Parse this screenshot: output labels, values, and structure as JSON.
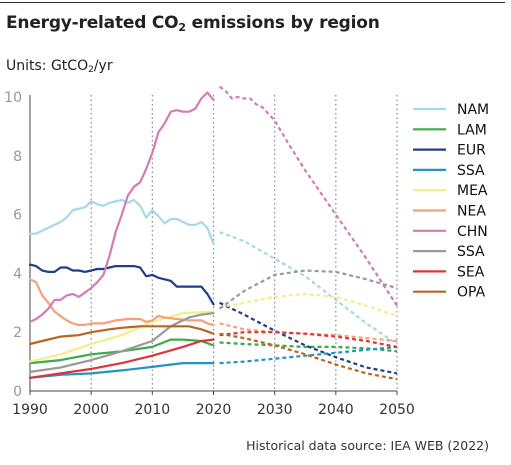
{
  "title": {
    "prefix": "Energy-related CO",
    "sub": "2",
    "suffix": " emissions by region"
  },
  "units": {
    "prefix": "Units: GtCO",
    "sub": "2",
    "suffix": "/yr"
  },
  "source": "Historical data source: IEA WEB (2022)",
  "chart_data": {
    "type": "line",
    "title": "Energy-related CO2 emissions by region",
    "ylabel": "Units: GtCO2/yr",
    "xlim": [
      1990,
      2050
    ],
    "ylim": [
      0,
      10
    ],
    "x_ticks": [
      1990,
      2000,
      2010,
      2020,
      2030,
      2040,
      2050
    ],
    "y_ticks": [
      0,
      2,
      4,
      6,
      8,
      10
    ],
    "grid": "vertical dotted",
    "legend_position": "right",
    "historical_end_year": 2020,
    "line_style": "solid = historical, dashed = projection",
    "series": [
      {
        "name": "NAM",
        "color": "#a6d8ec",
        "points": [
          [
            1990,
            5.35
          ],
          [
            1991,
            5.35
          ],
          [
            1992,
            5.45
          ],
          [
            1993,
            5.55
          ],
          [
            1994,
            5.65
          ],
          [
            1995,
            5.75
          ],
          [
            1996,
            5.9
          ],
          [
            1997,
            6.15
          ],
          [
            1998,
            6.2
          ],
          [
            1999,
            6.25
          ],
          [
            2000,
            6.45
          ],
          [
            2001,
            6.35
          ],
          [
            2002,
            6.3
          ],
          [
            2003,
            6.4
          ],
          [
            2004,
            6.45
          ],
          [
            2005,
            6.5
          ],
          [
            2006,
            6.4
          ],
          [
            2007,
            6.5
          ],
          [
            2008,
            6.3
          ],
          [
            2009,
            5.9
          ],
          [
            2010,
            6.15
          ],
          [
            2011,
            5.95
          ],
          [
            2012,
            5.7
          ],
          [
            2013,
            5.85
          ],
          [
            2014,
            5.85
          ],
          [
            2015,
            5.75
          ],
          [
            2016,
            5.65
          ],
          [
            2017,
            5.65
          ],
          [
            2018,
            5.75
          ],
          [
            2019,
            5.55
          ],
          [
            2020,
            5.0
          ],
          [
            2021,
            5.4
          ],
          [
            2025,
            5.1
          ],
          [
            2030,
            4.5
          ],
          [
            2035,
            3.9
          ],
          [
            2040,
            3.1
          ],
          [
            2045,
            2.3
          ],
          [
            2050,
            1.6
          ]
        ]
      },
      {
        "name": "LAM",
        "color": "#3aaa4a",
        "points": [
          [
            1990,
            0.95
          ],
          [
            1995,
            1.05
          ],
          [
            2000,
            1.25
          ],
          [
            2005,
            1.35
          ],
          [
            2010,
            1.5
          ],
          [
            2013,
            1.75
          ],
          [
            2015,
            1.75
          ],
          [
            2018,
            1.7
          ],
          [
            2020,
            1.55
          ],
          [
            2021,
            1.65
          ],
          [
            2025,
            1.6
          ],
          [
            2030,
            1.55
          ],
          [
            2035,
            1.5
          ],
          [
            2040,
            1.5
          ],
          [
            2045,
            1.45
          ],
          [
            2050,
            1.35
          ]
        ]
      },
      {
        "name": "EUR",
        "color": "#1f3f87",
        "points": [
          [
            1990,
            4.3
          ],
          [
            1991,
            4.25
          ],
          [
            1992,
            4.1
          ],
          [
            1993,
            4.05
          ],
          [
            1994,
            4.05
          ],
          [
            1995,
            4.2
          ],
          [
            1996,
            4.2
          ],
          [
            1997,
            4.1
          ],
          [
            1998,
            4.1
          ],
          [
            1999,
            4.05
          ],
          [
            2000,
            4.1
          ],
          [
            2001,
            4.15
          ],
          [
            2002,
            4.15
          ],
          [
            2003,
            4.2
          ],
          [
            2004,
            4.25
          ],
          [
            2005,
            4.25
          ],
          [
            2006,
            4.25
          ],
          [
            2007,
            4.25
          ],
          [
            2008,
            4.2
          ],
          [
            2009,
            3.9
          ],
          [
            2010,
            3.95
          ],
          [
            2011,
            3.85
          ],
          [
            2012,
            3.8
          ],
          [
            2013,
            3.75
          ],
          [
            2014,
            3.55
          ],
          [
            2015,
            3.55
          ],
          [
            2016,
            3.55
          ],
          [
            2017,
            3.55
          ],
          [
            2018,
            3.55
          ],
          [
            2019,
            3.3
          ],
          [
            2020,
            2.95
          ],
          [
            2021,
            3.0
          ],
          [
            2025,
            2.6
          ],
          [
            2030,
            2.05
          ],
          [
            2035,
            1.55
          ],
          [
            2040,
            1.15
          ],
          [
            2045,
            0.8
          ],
          [
            2050,
            0.6
          ]
        ]
      },
      {
        "name": "SSA",
        "color": "#2591c6",
        "points": [
          [
            1990,
            0.45
          ],
          [
            1995,
            0.55
          ],
          [
            2000,
            0.6
          ],
          [
            2005,
            0.7
          ],
          [
            2010,
            0.82
          ],
          [
            2015,
            0.95
          ],
          [
            2020,
            0.95
          ],
          [
            2021,
            0.95
          ],
          [
            2025,
            1.0
          ],
          [
            2030,
            1.1
          ],
          [
            2035,
            1.2
          ],
          [
            2040,
            1.3
          ],
          [
            2045,
            1.4
          ],
          [
            2050,
            1.5
          ]
        ]
      },
      {
        "name": "MEA",
        "color": "#f3ef86",
        "points": [
          [
            1990,
            1.0
          ],
          [
            1995,
            1.25
          ],
          [
            2000,
            1.6
          ],
          [
            2005,
            1.9
          ],
          [
            2010,
            2.35
          ],
          [
            2015,
            2.65
          ],
          [
            2020,
            2.7
          ],
          [
            2021,
            2.85
          ],
          [
            2025,
            3.0
          ],
          [
            2030,
            3.2
          ],
          [
            2035,
            3.3
          ],
          [
            2040,
            3.2
          ],
          [
            2045,
            2.9
          ],
          [
            2050,
            2.55
          ]
        ]
      },
      {
        "name": "NEA",
        "color": "#f4a07a",
        "points": [
          [
            1990,
            3.8
          ],
          [
            1991,
            3.7
          ],
          [
            1992,
            3.25
          ],
          [
            1993,
            3.0
          ],
          [
            1994,
            2.7
          ],
          [
            1995,
            2.55
          ],
          [
            1996,
            2.4
          ],
          [
            1997,
            2.3
          ],
          [
            1998,
            2.25
          ],
          [
            1999,
            2.25
          ],
          [
            2000,
            2.3
          ],
          [
            2002,
            2.3
          ],
          [
            2004,
            2.4
          ],
          [
            2006,
            2.45
          ],
          [
            2008,
            2.45
          ],
          [
            2009,
            2.35
          ],
          [
            2010,
            2.4
          ],
          [
            2011,
            2.55
          ],
          [
            2012,
            2.5
          ],
          [
            2014,
            2.45
          ],
          [
            2016,
            2.4
          ],
          [
            2018,
            2.4
          ],
          [
            2019,
            2.3
          ],
          [
            2020,
            2.25
          ],
          [
            2021,
            2.3
          ],
          [
            2025,
            2.1
          ],
          [
            2030,
            2.0
          ],
          [
            2035,
            1.95
          ],
          [
            2040,
            1.9
          ],
          [
            2045,
            1.8
          ],
          [
            2050,
            1.7
          ]
        ]
      },
      {
        "name": "CHN",
        "color": "#d57bb2",
        "points": [
          [
            1990,
            2.35
          ],
          [
            1991,
            2.45
          ],
          [
            1992,
            2.6
          ],
          [
            1993,
            2.8
          ],
          [
            1994,
            3.1
          ],
          [
            1995,
            3.1
          ],
          [
            1996,
            3.25
          ],
          [
            1997,
            3.3
          ],
          [
            1998,
            3.2
          ],
          [
            1999,
            3.35
          ],
          [
            2000,
            3.5
          ],
          [
            2001,
            3.7
          ],
          [
            2002,
            3.95
          ],
          [
            2003,
            4.6
          ],
          [
            2004,
            5.4
          ],
          [
            2005,
            6.0
          ],
          [
            2006,
            6.65
          ],
          [
            2007,
            6.95
          ],
          [
            2008,
            7.1
          ],
          [
            2009,
            7.55
          ],
          [
            2010,
            8.1
          ],
          [
            2011,
            8.8
          ],
          [
            2012,
            9.1
          ],
          [
            2013,
            9.5
          ],
          [
            2014,
            9.55
          ],
          [
            2015,
            9.5
          ],
          [
            2016,
            9.5
          ],
          [
            2017,
            9.6
          ],
          [
            2018,
            9.95
          ],
          [
            2019,
            10.15
          ],
          [
            2020,
            9.9
          ],
          [
            2021,
            10.35
          ],
          [
            2022,
            10.2
          ],
          [
            2023,
            9.95
          ],
          [
            2024,
            10.0
          ],
          [
            2025,
            9.95
          ],
          [
            2026,
            9.95
          ],
          [
            2027,
            9.75
          ],
          [
            2028,
            9.65
          ],
          [
            2030,
            9.2
          ],
          [
            2032,
            8.5
          ],
          [
            2035,
            7.5
          ],
          [
            2040,
            6.0
          ],
          [
            2045,
            4.5
          ],
          [
            2050,
            2.9
          ]
        ]
      },
      {
        "name": "SSA",
        "color": "#9a9a9a",
        "points": [
          [
            1990,
            0.65
          ],
          [
            1995,
            0.8
          ],
          [
            2000,
            1.05
          ],
          [
            2005,
            1.35
          ],
          [
            2010,
            1.7
          ],
          [
            2013,
            2.2
          ],
          [
            2016,
            2.5
          ],
          [
            2018,
            2.6
          ],
          [
            2020,
            2.65
          ],
          [
            2021,
            2.8
          ],
          [
            2025,
            3.4
          ],
          [
            2030,
            3.95
          ],
          [
            2035,
            4.1
          ],
          [
            2040,
            4.05
          ],
          [
            2045,
            3.8
          ],
          [
            2050,
            3.5
          ]
        ]
      },
      {
        "name": "SEA",
        "color": "#d8373c",
        "points": [
          [
            1990,
            0.45
          ],
          [
            1995,
            0.6
          ],
          [
            2000,
            0.75
          ],
          [
            2005,
            0.95
          ],
          [
            2010,
            1.2
          ],
          [
            2015,
            1.5
          ],
          [
            2018,
            1.7
          ],
          [
            2020,
            1.75
          ],
          [
            2021,
            1.9
          ],
          [
            2025,
            2.0
          ],
          [
            2030,
            2.0
          ],
          [
            2035,
            1.95
          ],
          [
            2040,
            1.85
          ],
          [
            2045,
            1.7
          ],
          [
            2050,
            1.5
          ]
        ]
      },
      {
        "name": "OPA",
        "color": "#b9651f",
        "points": [
          [
            1990,
            1.6
          ],
          [
            1992,
            1.7
          ],
          [
            1995,
            1.85
          ],
          [
            1998,
            1.9
          ],
          [
            2000,
            2.0
          ],
          [
            2003,
            2.1
          ],
          [
            2005,
            2.15
          ],
          [
            2008,
            2.2
          ],
          [
            2010,
            2.2
          ],
          [
            2013,
            2.2
          ],
          [
            2016,
            2.2
          ],
          [
            2018,
            2.1
          ],
          [
            2020,
            1.95
          ],
          [
            2021,
            1.95
          ],
          [
            2025,
            1.8
          ],
          [
            2030,
            1.55
          ],
          [
            2035,
            1.25
          ],
          [
            2040,
            0.9
          ],
          [
            2045,
            0.6
          ],
          [
            2050,
            0.4
          ]
        ]
      }
    ]
  }
}
